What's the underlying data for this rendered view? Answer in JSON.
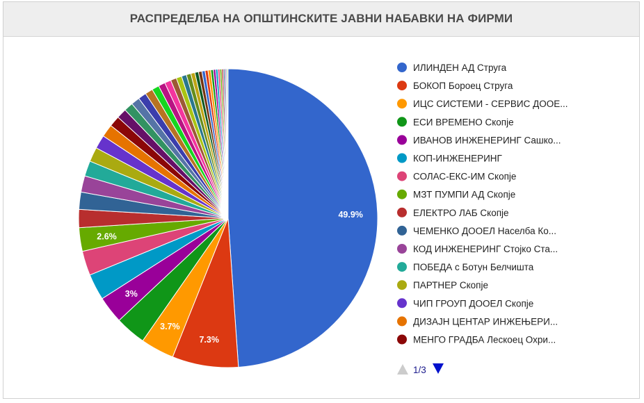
{
  "title": "РАСПРЕДЕЛБА НА ОПШТИНСКИТЕ ЈАВНИ НАБАВКИ НА ФИРМИ",
  "chart_data": {
    "type": "pie",
    "title": "РАСПРЕДЕЛБА НА ОПШТИНСКИТЕ ЈАВНИ НАБАВКИ НА ФИРМИ",
    "legend_position": "right",
    "slices": [
      {
        "label": "ИЛИНДЕН АД Струга",
        "value": 49.9,
        "color": "#3366cc",
        "shown_label": "49.9%"
      },
      {
        "label": "БОКОП Бороец Струга",
        "value": 7.3,
        "color": "#dc3912",
        "shown_label": "7.3%"
      },
      {
        "label": "ИЦС СИСТЕМИ - СЕРВИС ДООЕ...",
        "value": 3.7,
        "color": "#ff9900",
        "shown_label": "3.7%"
      },
      {
        "label": "ЕСИ ВРЕМЕНО Скопје",
        "value": 3.4,
        "color": "#109618",
        "shown_label": ""
      },
      {
        "label": "ИВАНОВ ИНЖЕНЕРИНГ Сашко...",
        "value": 3.0,
        "color": "#990099",
        "shown_label": "3%"
      },
      {
        "label": "КОП-ИНЖЕНЕРИНГ",
        "value": 2.9,
        "color": "#0099c6",
        "shown_label": ""
      },
      {
        "label": "СОЛАС-ЕКС-ИМ Скопје",
        "value": 2.7,
        "color": "#dd4477",
        "shown_label": ""
      },
      {
        "label": "МЗТ ПУМПИ АД Скопје",
        "value": 2.6,
        "color": "#66aa00",
        "shown_label": "2.6%"
      },
      {
        "label": "ЕЛЕКТРО ЛАБ Скопје",
        "value": 2.0,
        "color": "#b82e2e",
        "shown_label": ""
      },
      {
        "label": "ЧЕМЕНКО ДООЕЛ Населба Ко...",
        "value": 1.9,
        "color": "#316395",
        "shown_label": ""
      },
      {
        "label": "КОД ИНЖЕНЕРИНГ Стојко Ста...",
        "value": 1.8,
        "color": "#994499",
        "shown_label": ""
      },
      {
        "label": "ПОБЕДА с Ботун Белчишта",
        "value": 1.7,
        "color": "#22aa99",
        "shown_label": ""
      },
      {
        "label": "ПАРТНЕР Скопје",
        "value": 1.6,
        "color": "#aaaa11",
        "shown_label": ""
      },
      {
        "label": "ЧИП ГРОУП ДООЕЛ Скопје",
        "value": 1.5,
        "color": "#6633cc",
        "shown_label": ""
      },
      {
        "label": "ДИЗАЈН ЦЕНТАР ИНЖЕЊЕРИ...",
        "value": 1.4,
        "color": "#e67300",
        "shown_label": ""
      },
      {
        "label": "МЕНГО ГРАДБА Лескоец Охри...",
        "value": 1.2,
        "color": "#8b0707",
        "shown_label": ""
      }
    ],
    "other_slices": [
      {
        "value": 1.1,
        "color": "#651067"
      },
      {
        "value": 1.0,
        "color": "#329262"
      },
      {
        "value": 0.95,
        "color": "#5574a6"
      },
      {
        "value": 0.9,
        "color": "#3b3eac"
      },
      {
        "value": 0.85,
        "color": "#b77322"
      },
      {
        "value": 0.8,
        "color": "#16d620"
      },
      {
        "value": 0.75,
        "color": "#b91383"
      },
      {
        "value": 0.7,
        "color": "#f4359e"
      },
      {
        "value": 0.65,
        "color": "#9c5935"
      },
      {
        "value": 0.6,
        "color": "#a9c413"
      },
      {
        "value": 0.55,
        "color": "#2a778d"
      },
      {
        "value": 0.5,
        "color": "#668d1c"
      },
      {
        "value": 0.45,
        "color": "#bea413"
      },
      {
        "value": 0.4,
        "color": "#0c5922"
      },
      {
        "value": 0.38,
        "color": "#743411"
      },
      {
        "value": 0.35,
        "color": "#3366cc"
      },
      {
        "value": 0.32,
        "color": "#dc3912"
      },
      {
        "value": 0.3,
        "color": "#ff9900"
      },
      {
        "value": 0.28,
        "color": "#109618"
      },
      {
        "value": 0.26,
        "color": "#990099"
      },
      {
        "value": 0.24,
        "color": "#0099c6"
      },
      {
        "value": 0.22,
        "color": "#dd4477"
      },
      {
        "value": 0.2,
        "color": "#66aa00"
      },
      {
        "value": 0.18,
        "color": "#b82e2e"
      },
      {
        "value": 0.16,
        "color": "#316395"
      },
      {
        "value": 0.14,
        "color": "#994499"
      },
      {
        "value": 0.12,
        "color": "#22aa99"
      },
      {
        "value": 0.1,
        "color": "#aaaa11"
      }
    ]
  },
  "legend_pager": {
    "text": "1/3",
    "prev_color": "#cccccc",
    "next_color": "#0011cc"
  }
}
